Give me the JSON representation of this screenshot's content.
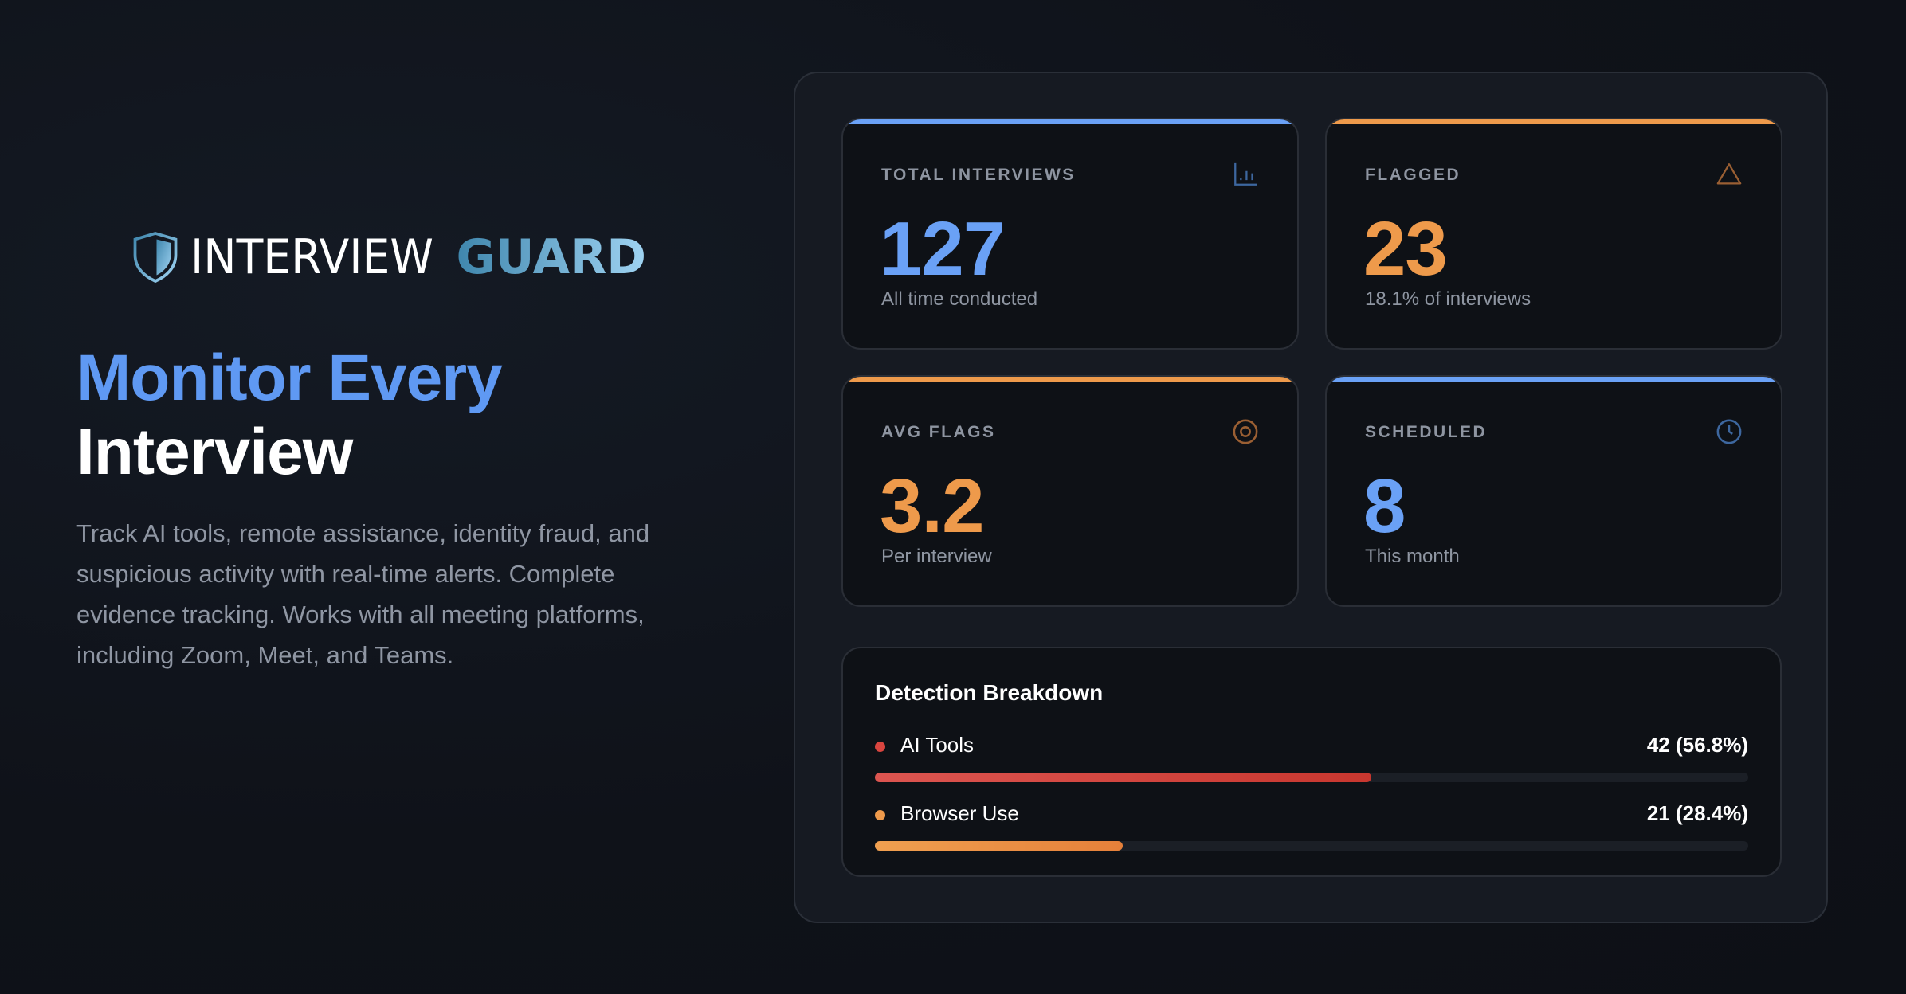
{
  "brand": {
    "word1": "INTERVIEW",
    "word2": "GUARD"
  },
  "hero": {
    "line1": "Monitor Every",
    "line2": "Interview",
    "description": "Track AI tools, remote assistance, identity fraud, and suspicious activity with real-time alerts. Complete evidence tracking. Works with all meeting platforms, including Zoom, Meet, and Teams."
  },
  "colors": {
    "blue": "#6aa1f6",
    "orange": "#ee9a4b",
    "red": "#d9453f"
  },
  "stats": [
    {
      "label": "TOTAL INTERVIEWS",
      "value": "127",
      "sub": "All time conducted",
      "icon": "bar-chart-icon",
      "accent": "#6aa1f6"
    },
    {
      "label": "FLAGGED",
      "value": "23",
      "sub": "18.1% of interviews",
      "icon": "warning-triangle-icon",
      "accent": "#ee9a4b"
    },
    {
      "label": "AVG FLAGS",
      "value": "3.2",
      "sub": "Per interview",
      "icon": "target-icon",
      "accent": "#ee9a4b"
    },
    {
      "label": "SCHEDULED",
      "value": "8",
      "sub": "This month",
      "icon": "clock-icon",
      "accent": "#6aa1f6"
    }
  ],
  "breakdown": {
    "title": "Detection Breakdown",
    "items": [
      {
        "name": "AI Tools",
        "value": "42 (56.8%)",
        "percent": 56.8,
        "color": "#d9453f"
      },
      {
        "name": "Browser Use",
        "value": "21 (28.4%)",
        "percent": 28.4,
        "color": "#ee9a4b"
      }
    ]
  }
}
